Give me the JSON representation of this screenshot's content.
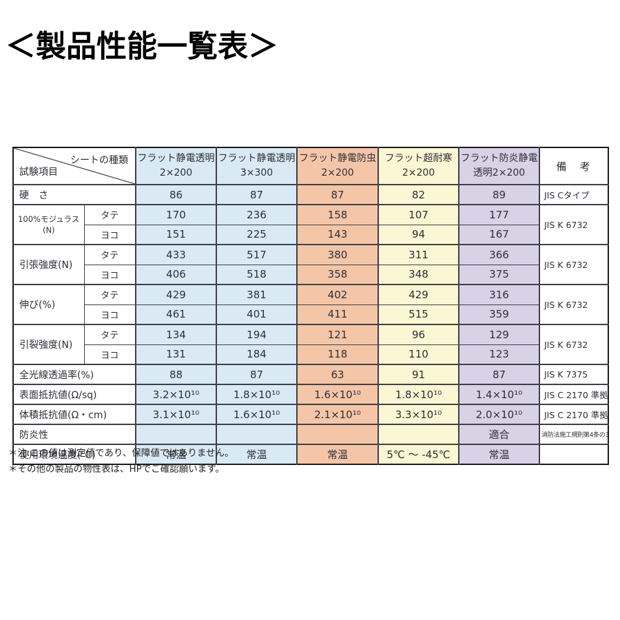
{
  "page_title": "＜製品性能一覧表＞",
  "table": {
    "corner": {
      "top_right": "シートの種類",
      "bottom_left": "試験項目"
    },
    "remarks_header": "備　考",
    "columns": [
      {
        "line1": "フラット静電透明",
        "line2": "2×200",
        "bg": "#d9eaf5"
      },
      {
        "line1": "フラット静電透明",
        "line2": "3×300",
        "bg": "#d9eaf5"
      },
      {
        "line1": "フラット静電防虫",
        "line2": "2×200",
        "bg": "#f4c6a7"
      },
      {
        "line1": "フラット超耐寒",
        "line2": "2×200",
        "bg": "#fbf6d3"
      },
      {
        "line1": "フラット防炎静電",
        "line2": "透明2×200",
        "bg": "#d8d2e6"
      }
    ],
    "rows": [
      {
        "label": "硬　さ",
        "label_rows": 1,
        "label_cols": 2,
        "values": [
          "86",
          "87",
          "87",
          "82",
          "89"
        ],
        "remark": "JIS Cタイプ",
        "remark_rows": 1
      },
      {
        "label": "100%モジュラス\n(N)",
        "label_rows": 2,
        "label_cols": 1,
        "sub": "タテ",
        "values": [
          "170",
          "236",
          "158",
          "107",
          "177"
        ],
        "remark": "JIS K 6732",
        "remark_rows": 2
      },
      {
        "sub": "ヨコ",
        "values": [
          "151",
          "225",
          "143",
          "94",
          "167"
        ]
      },
      {
        "label": "引張強度(N)",
        "label_rows": 2,
        "label_cols": 1,
        "sub": "タテ",
        "values": [
          "433",
          "517",
          "380",
          "311",
          "366"
        ],
        "remark": "JIS K 6732",
        "remark_rows": 2
      },
      {
        "sub": "ヨコ",
        "values": [
          "406",
          "518",
          "358",
          "348",
          "375"
        ]
      },
      {
        "label": "伸び(%)",
        "label_rows": 2,
        "label_cols": 1,
        "sub": "タテ",
        "values": [
          "429",
          "381",
          "402",
          "429",
          "316"
        ],
        "remark": "JIS K 6732",
        "remark_rows": 2
      },
      {
        "sub": "ヨコ",
        "values": [
          "461",
          "401",
          "411",
          "515",
          "359"
        ]
      },
      {
        "label": "引裂強度(N)",
        "label_rows": 2,
        "label_cols": 1,
        "sub": "タテ",
        "values": [
          "134",
          "194",
          "121",
          "96",
          "129"
        ],
        "remark": "JIS K 6732",
        "remark_rows": 2
      },
      {
        "sub": "ヨコ",
        "values": [
          "131",
          "184",
          "118",
          "110",
          "123"
        ]
      },
      {
        "label": "全光線透過率(%)",
        "label_rows": 1,
        "label_cols": 2,
        "values": [
          "88",
          "87",
          "63",
          "91",
          "87"
        ],
        "remark": "JIS K 7375",
        "remark_rows": 1
      },
      {
        "label": "表面抵抗値(Ω/sq)",
        "label_rows": 1,
        "label_cols": 2,
        "values": [
          "3.2×10¹⁰",
          "1.8×10¹⁰",
          "1.6×10¹⁰",
          "1.8×10¹⁰",
          "1.4×10¹⁰"
        ],
        "remark": "JIS C 2170 準拠",
        "remark_rows": 1
      },
      {
        "label": "体積抵抗値(Ω・cm)",
        "label_rows": 1,
        "label_cols": 2,
        "values": [
          "3.1×10¹⁰",
          "1.6×10¹⁰",
          "2.1×10¹⁰",
          "3.3×10¹⁰",
          "2.0×10¹⁰"
        ],
        "remark": "JIS C 2170 準拠",
        "remark_rows": 1
      },
      {
        "label": "防炎性",
        "label_rows": 1,
        "label_cols": 2,
        "values": [
          "",
          "",
          "",
          "",
          "適合"
        ],
        "remark": "消防法施工規則第4条の3",
        "remark_rows": 1,
        "remark_small": true
      },
      {
        "label": "使用環境温度(℃)",
        "label_rows": 1,
        "label_cols": 2,
        "values": [
          "常温",
          "常温",
          "常温",
          "5℃ ～ -45℃",
          "常温"
        ],
        "remark": "",
        "remark_rows": 1
      }
    ]
  },
  "footnotes": [
    "＊注:この値は測定値であり、保障値ではありません。",
    "＊その他の製品の物性表は、HPでご確認願います。"
  ]
}
